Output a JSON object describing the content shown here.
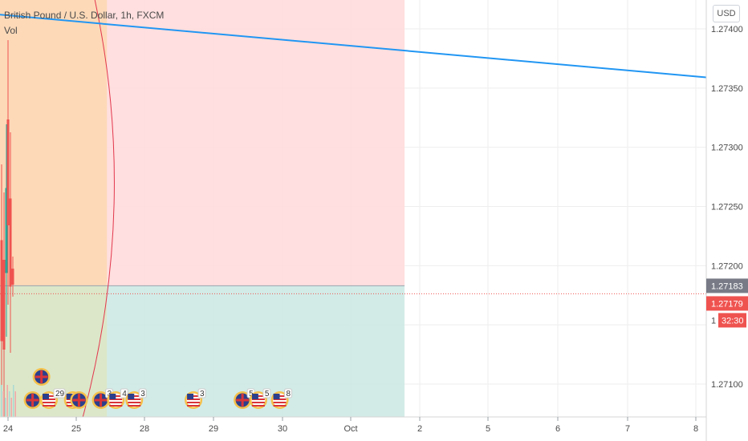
{
  "legend": {
    "symbol": "British Pound / U.S. Dollar, 1h, FXCM",
    "volume": "Vol"
  },
  "currency_label": "USD",
  "price_tags": {
    "current": "1.27183",
    "bid": "1.27179",
    "countdown": "32:30",
    "hidden_label": "1"
  },
  "colors": {
    "trend_line": "#2196f3",
    "red_zone": "#ffdcdc",
    "orange_zone": "#fdd8b4",
    "teal_zone": "#cde9e4",
    "olive_zone": "#dde7c5",
    "arc": "#e2374d",
    "current_tag": "#787b86",
    "bid_tag": "#ef5350",
    "up_candle": "#26a69a",
    "down_candle": "#ef5350"
  },
  "chart_data": {
    "type": "line",
    "y_axis": {
      "ticks": [
        "1.27400",
        "1.27350",
        "1.27300",
        "1.27250",
        "1.27200",
        "1.27100"
      ],
      "range": [
        1.2707,
        1.2744
      ]
    },
    "x_axis": {
      "ticks": [
        "24",
        "25",
        "28",
        "29",
        "30",
        "Oct",
        "2",
        "5",
        "6",
        "7",
        "8"
      ]
    },
    "trend_line": {
      "start": [
        0,
        1.27412
      ],
      "end": [
        10.2,
        1.27359
      ]
    },
    "zones": {
      "red": {
        "x": [
          0,
          5.78
        ],
        "y": [
          1.27183,
          1.2744
        ]
      },
      "teal": {
        "x": [
          0,
          5.78
        ],
        "y": [
          1.2707,
          1.27183
        ]
      },
      "orange": {
        "x": [
          0,
          1.45
        ],
        "y": [
          1.27183,
          1.2744
        ]
      },
      "olive": {
        "x": [
          0,
          1.45
        ],
        "y": [
          1.2707,
          1.27183
        ]
      }
    },
    "current_price": 1.27183,
    "bid_price": 1.27179,
    "events": [
      {
        "flag": "uk",
        "x": 0.49,
        "count": ""
      },
      {
        "flag": "uk",
        "x": 0.36,
        "count": ""
      },
      {
        "flag": "us",
        "x": 0.6,
        "count": "29"
      },
      {
        "flag": "us",
        "x": 0.95,
        "count": ""
      },
      {
        "flag": "uk",
        "x": 1.04,
        "count": ""
      },
      {
        "flag": "uk",
        "x": 1.36,
        "count": "3"
      },
      {
        "flag": "us",
        "x": 1.58,
        "count": "4"
      },
      {
        "flag": "us",
        "x": 1.85,
        "count": "3"
      },
      {
        "flag": "us",
        "x": 2.71,
        "count": "3"
      },
      {
        "flag": "uk",
        "x": 3.42,
        "count": "5"
      },
      {
        "flag": "us",
        "x": 3.65,
        "count": "5"
      },
      {
        "flag": "us",
        "x": 3.96,
        "count": "8"
      }
    ]
  }
}
